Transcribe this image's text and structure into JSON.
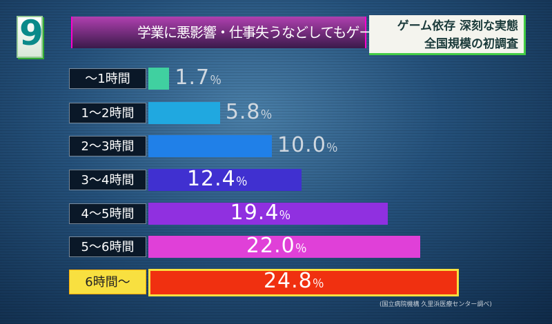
{
  "header": {
    "logo": "9",
    "title": "学業に悪影響・仕事失うなどしてもゲーム続けた",
    "subtitle_line1": "ゲーム依存 深刻な実態",
    "subtitle_line2": "全国規模の初調査"
  },
  "chart_data": {
    "type": "bar",
    "orientation": "horizontal",
    "categories": [
      "～1時間",
      "1～2時間",
      "2～3時間",
      "3～4時間",
      "4～5時間",
      "5～6時間",
      "6時間～"
    ],
    "values": [
      1.7,
      5.8,
      10.0,
      12.4,
      19.4,
      22.0,
      24.8
    ],
    "value_labels": [
      "1.7",
      "5.8",
      "10.0",
      "12.4",
      "19.4",
      "22.0",
      "24.8"
    ],
    "unit": "％",
    "colors": [
      "#40d0a0",
      "#20a8e0",
      "#2080e8",
      "#4030d0",
      "#9030e0",
      "#e040d8",
      "#f03010"
    ],
    "highlight_color": "#f8e040"
  },
  "source": "(国立病院機構 久里浜医療センター調べ)"
}
